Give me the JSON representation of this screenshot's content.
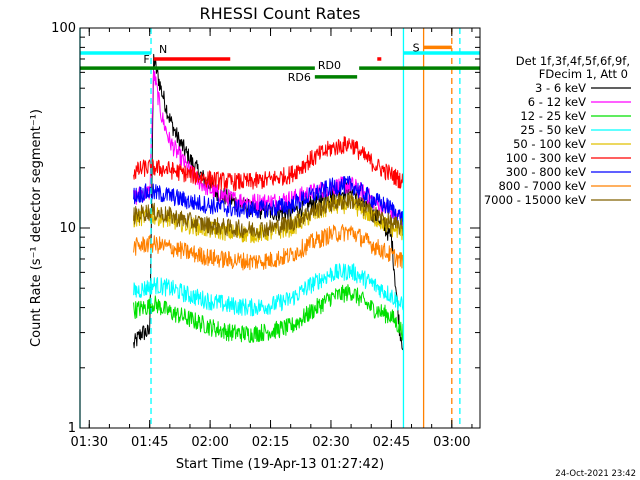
{
  "chart_data": {
    "type": "line",
    "title": "RHESSI Count Rates",
    "ylabel": "Count Rate (s⁻¹ detector segment⁻¹)",
    "xlabel": "Start Time (19-Apr-13 01:27:42)",
    "x_range": [
      "01:27:42",
      "03:07:00"
    ],
    "ylim": [
      1,
      100
    ],
    "y_scale": "log",
    "x_ticks": [
      "01:30",
      "01:45",
      "02:00",
      "02:15",
      "02:30",
      "02:45",
      "03:00"
    ],
    "y_ticks": [
      "1",
      "10",
      "100"
    ],
    "legend_header": [
      "Det 1f,3f,4f,5f,6f,9f,",
      "FDecim 1, Att 0"
    ],
    "legend_position": "right",
    "series": [
      {
        "name": "3 - 6 keV",
        "color": "#000000",
        "points": [
          [
            "01:41:00",
            2.6
          ],
          [
            "01:43:00",
            3.0
          ],
          [
            "01:45:00",
            3.0
          ],
          [
            "01:46:00",
            70
          ],
          [
            "01:48:00",
            48
          ],
          [
            "01:50:00",
            35
          ],
          [
            "01:52:00",
            28
          ],
          [
            "01:55:00",
            22
          ],
          [
            "01:58:00",
            18
          ],
          [
            "02:02:00",
            15
          ],
          [
            "02:06:00",
            13.5
          ],
          [
            "02:10:00",
            12.5
          ],
          [
            "02:15:00",
            12
          ],
          [
            "02:20:00",
            12
          ],
          [
            "02:24:00",
            13
          ],
          [
            "02:28:00",
            14
          ],
          [
            "02:31:00",
            15
          ],
          [
            "02:35:00",
            15.5
          ],
          [
            "02:38:00",
            13
          ],
          [
            "02:42:00",
            11
          ],
          [
            "02:45:00",
            9
          ],
          [
            "02:47:00",
            3.2
          ],
          [
            "02:48:00",
            2.5
          ]
        ]
      },
      {
        "name": "6 - 12 keV",
        "color": "#ff00ff",
        "points": [
          [
            "01:41:00",
            14
          ],
          [
            "01:43:00",
            15
          ],
          [
            "01:45:00",
            15
          ],
          [
            "01:46:00",
            60
          ],
          [
            "01:48:00",
            36
          ],
          [
            "01:50:00",
            27
          ],
          [
            "01:53:00",
            22
          ],
          [
            "01:56:00",
            18
          ],
          [
            "02:00:00",
            15.5
          ],
          [
            "02:05:00",
            14
          ],
          [
            "02:10:00",
            13.5
          ],
          [
            "02:15:00",
            13.5
          ],
          [
            "02:20:00",
            14
          ],
          [
            "02:25:00",
            15
          ],
          [
            "02:30:00",
            16
          ],
          [
            "02:35:00",
            16.5
          ],
          [
            "02:38:00",
            15
          ],
          [
            "02:42:00",
            13
          ],
          [
            "02:45:00",
            12
          ],
          [
            "02:48:00",
            11
          ]
        ]
      },
      {
        "name": "12 - 25 keV",
        "color": "#00e000",
        "points": [
          [
            "01:41:00",
            3.9
          ],
          [
            "01:44:00",
            4.0
          ],
          [
            "01:46:00",
            4.2
          ],
          [
            "01:50:00",
            3.8
          ],
          [
            "01:55:00",
            3.5
          ],
          [
            "02:00:00",
            3.2
          ],
          [
            "02:05:00",
            3.0
          ],
          [
            "02:10:00",
            2.95
          ],
          [
            "02:15:00",
            3.05
          ],
          [
            "02:20:00",
            3.2
          ],
          [
            "02:25:00",
            3.8
          ],
          [
            "02:30:00",
            4.5
          ],
          [
            "02:35:00",
            4.8
          ],
          [
            "02:40:00",
            4.0
          ],
          [
            "02:45:00",
            3.6
          ],
          [
            "02:48:00",
            3.0
          ]
        ]
      },
      {
        "name": "25 - 50 keV",
        "color": "#00ffff",
        "points": [
          [
            "01:41:00",
            4.8
          ],
          [
            "01:44:00",
            5.0
          ],
          [
            "01:46:00",
            5.2
          ],
          [
            "01:50:00",
            5.0
          ],
          [
            "01:55:00",
            4.6
          ],
          [
            "02:00:00",
            4.3
          ],
          [
            "02:05:00",
            4.1
          ],
          [
            "02:10:00",
            4.0
          ],
          [
            "02:15:00",
            4.1
          ],
          [
            "02:20:00",
            4.4
          ],
          [
            "02:25:00",
            5.2
          ],
          [
            "02:30:00",
            5.9
          ],
          [
            "02:35:00",
            6.1
          ],
          [
            "02:40:00",
            5.3
          ],
          [
            "02:45:00",
            4.6
          ],
          [
            "02:48:00",
            4.0
          ]
        ]
      },
      {
        "name": "50 - 100 keV",
        "color": "#e0c000",
        "points": [
          [
            "01:41:00",
            11
          ],
          [
            "01:44:00",
            11.5
          ],
          [
            "01:46:00",
            11.5
          ],
          [
            "01:50:00",
            11
          ],
          [
            "01:55:00",
            10.3
          ],
          [
            "02:00:00",
            9.8
          ],
          [
            "02:05:00",
            9.5
          ],
          [
            "02:10:00",
            9.3
          ],
          [
            "02:15:00",
            9.5
          ],
          [
            "02:20:00",
            10
          ],
          [
            "02:25:00",
            11.5
          ],
          [
            "02:30:00",
            12.8
          ],
          [
            "02:35:00",
            13.2
          ],
          [
            "02:40:00",
            11.5
          ],
          [
            "02:45:00",
            10
          ],
          [
            "02:48:00",
            9.5
          ]
        ]
      },
      {
        "name": "100 - 300 keV",
        "color": "#ff0000",
        "points": [
          [
            "01:41:00",
            19
          ],
          [
            "01:44:00",
            20
          ],
          [
            "01:46:00",
            20
          ],
          [
            "01:50:00",
            19.5
          ],
          [
            "01:55:00",
            18.5
          ],
          [
            "02:00:00",
            17.5
          ],
          [
            "02:05:00",
            17
          ],
          [
            "02:10:00",
            17
          ],
          [
            "02:15:00",
            17.5
          ],
          [
            "02:20:00",
            18.5
          ],
          [
            "02:25:00",
            22
          ],
          [
            "02:30:00",
            25
          ],
          [
            "02:35:00",
            26.5
          ],
          [
            "02:38:00",
            23
          ],
          [
            "02:42:00",
            20
          ],
          [
            "02:45:00",
            18.5
          ],
          [
            "02:48:00",
            17
          ]
        ]
      },
      {
        "name": "300 - 800 keV",
        "color": "#0000ff",
        "points": [
          [
            "01:41:00",
            14.5
          ],
          [
            "01:44:00",
            15
          ],
          [
            "01:46:00",
            15
          ],
          [
            "01:50:00",
            14.5
          ],
          [
            "01:55:00",
            13.5
          ],
          [
            "02:00:00",
            13
          ],
          [
            "02:05:00",
            12.5
          ],
          [
            "02:10:00",
            12.3
          ],
          [
            "02:15:00",
            12.5
          ],
          [
            "02:20:00",
            13
          ],
          [
            "02:25:00",
            14.5
          ],
          [
            "02:30:00",
            16
          ],
          [
            "02:35:00",
            16.5
          ],
          [
            "02:40:00",
            14
          ],
          [
            "02:45:00",
            12.5
          ],
          [
            "02:48:00",
            11
          ]
        ]
      },
      {
        "name": "800 - 7000 keV",
        "color": "#ff8000",
        "points": [
          [
            "01:41:00",
            8
          ],
          [
            "01:44:00",
            8.3
          ],
          [
            "01:46:00",
            8.3
          ],
          [
            "01:50:00",
            8
          ],
          [
            "01:55:00",
            7.5
          ],
          [
            "02:00:00",
            7.1
          ],
          [
            "02:05:00",
            6.9
          ],
          [
            "02:10:00",
            6.8
          ],
          [
            "02:15:00",
            6.9
          ],
          [
            "02:20:00",
            7.3
          ],
          [
            "02:25:00",
            8.4
          ],
          [
            "02:30:00",
            9.3
          ],
          [
            "02:35:00",
            9.6
          ],
          [
            "02:40:00",
            8.3
          ],
          [
            "02:45:00",
            7.3
          ],
          [
            "02:48:00",
            6.8
          ]
        ]
      },
      {
        "name": "7000 - 15000 keV",
        "color": "#806000",
        "points": [
          [
            "01:41:00",
            11.5
          ],
          [
            "01:44:00",
            12
          ],
          [
            "01:46:00",
            12
          ],
          [
            "01:50:00",
            11.5
          ],
          [
            "01:55:00",
            10.8
          ],
          [
            "02:00:00",
            10.3
          ],
          [
            "02:05:00",
            10
          ],
          [
            "02:10:00",
            9.8
          ],
          [
            "02:15:00",
            10
          ],
          [
            "02:20:00",
            10.5
          ],
          [
            "02:25:00",
            12
          ],
          [
            "02:30:00",
            13.3
          ],
          [
            "02:35:00",
            13.8
          ],
          [
            "02:40:00",
            12
          ],
          [
            "02:45:00",
            10.5
          ],
          [
            "02:48:00",
            10
          ]
        ]
      }
    ],
    "flag_bars": [
      {
        "label": "N",
        "color": "#00ffff",
        "y": 75,
        "segments": [
          [
            "01:27:42",
            "01:45:20"
          ],
          [
            "02:48:00",
            "03:07:00"
          ]
        ]
      },
      {
        "label": "F",
        "color": "#ff0000",
        "y": 70,
        "segments": [
          [
            "01:46:00",
            "02:05:00"
          ],
          [
            "02:41:30",
            "02:42:30"
          ]
        ]
      },
      {
        "label": "RD0",
        "color": "#008000",
        "y": 63,
        "segments": [
          [
            "01:27:42",
            "02:26:00"
          ],
          [
            "02:37:00",
            "03:07:00"
          ]
        ]
      },
      {
        "label": "RD6",
        "color": "#008000",
        "y": 57,
        "segments": [
          [
            "02:26:00",
            "02:36:30"
          ]
        ]
      },
      {
        "label": "S",
        "color": "#ff8000",
        "y": 80,
        "segments": [
          [
            "02:53:00",
            "03:00:00"
          ]
        ]
      }
    ],
    "vertical_lines": [
      {
        "time": "01:27:42",
        "color": "#00ffff",
        "style": "solid"
      },
      {
        "time": "01:45:20",
        "color": "#00ffff",
        "style": "dashed"
      },
      {
        "time": "02:48:00",
        "color": "#00ffff",
        "style": "solid"
      },
      {
        "time": "02:53:00",
        "color": "#ff8000",
        "style": "solid"
      },
      {
        "time": "03:00:00",
        "color": "#ff8000",
        "style": "dashed"
      },
      {
        "time": "03:02:00",
        "color": "#00ffff",
        "style": "dashed"
      }
    ]
  },
  "footer": {
    "timestamp": "24-Oct-2021 23:42"
  }
}
